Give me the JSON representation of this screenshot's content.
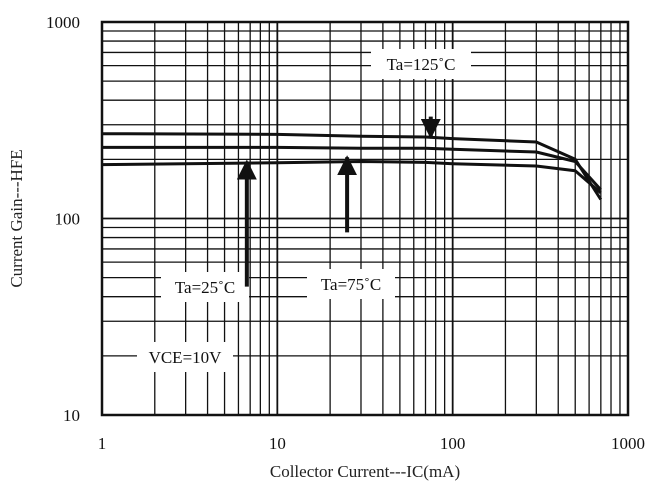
{
  "chart_data": {
    "type": "line",
    "xscale": "log",
    "yscale": "log",
    "xlim": [
      1,
      1000
    ],
    "ylim": [
      10,
      1000
    ],
    "xlabel": "Collector Current---IC(mA)",
    "ylabel": "Current Gain---HFE",
    "grid": true,
    "x_ticks": [
      "1",
      "10",
      "100",
      "1000"
    ],
    "y_ticks": [
      "10",
      "100",
      "1000"
    ],
    "series": [
      {
        "name": "Ta=125˚C",
        "x": [
          1,
          10,
          30,
          70,
          100,
          300,
          500,
          700
        ],
        "values": [
          270,
          268,
          262,
          260,
          255,
          245,
          200,
          125
        ]
      },
      {
        "name": "Ta=75˚C",
        "x": [
          1,
          10,
          30,
          70,
          100,
          300,
          500,
          700
        ],
        "values": [
          230,
          230,
          228,
          228,
          225,
          218,
          195,
          140
        ]
      },
      {
        "name": "Ta=25˚C",
        "x": [
          1,
          10,
          30,
          70,
          100,
          300,
          500,
          700
        ],
        "values": [
          188,
          192,
          195,
          193,
          190,
          185,
          175,
          135
        ]
      }
    ],
    "annotations": [
      {
        "text": "Ta=125˚C",
        "arrow": {
          "x": 75,
          "from_y": 330,
          "to_y": 260
        }
      },
      {
        "text": "Ta=25˚C",
        "arrow": {
          "x": 6.7,
          "from_y": 45,
          "to_y": 195
        }
      },
      {
        "text": "Ta=75˚C",
        "arrow": {
          "x": 25,
          "from_y": 85,
          "to_y": 205
        }
      },
      {
        "text": "VCE=10V"
      }
    ]
  }
}
